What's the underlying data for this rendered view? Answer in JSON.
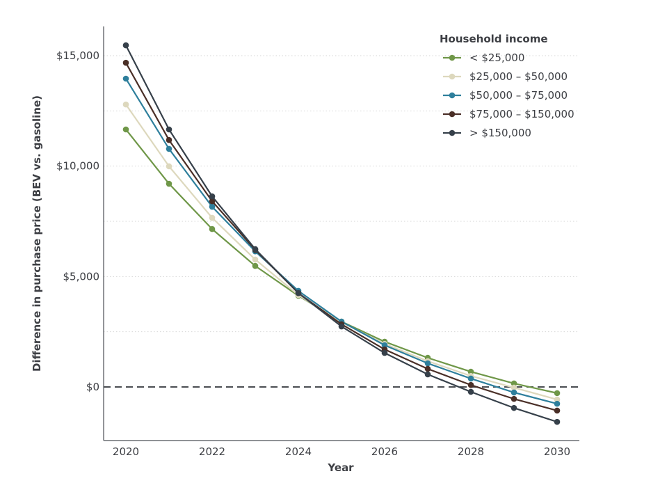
{
  "chart_data": {
    "type": "line",
    "title": "",
    "xlabel": "Year",
    "ylabel": "Difference in purchase price (BEV vs. gasoline)",
    "x": [
      2020,
      2021,
      2022,
      2023,
      2024,
      2025,
      2026,
      2027,
      2028,
      2029,
      2030
    ],
    "xlim": [
      2019.5,
      2030.5
    ],
    "ylim": [
      -2400,
      16200
    ],
    "x_ticks": [
      2020,
      2022,
      2024,
      2026,
      2028,
      2030
    ],
    "x_tick_labels": [
      "2020",
      "2022",
      "2024",
      "2026",
      "2028",
      "2030"
    ],
    "y_ticks": [
      0,
      5000,
      10000,
      15000
    ],
    "y_tick_labels": [
      "$0",
      "$5,000",
      "$10,000",
      "$15,000"
    ],
    "y_minor_gridlines": [
      2500,
      5000,
      7500,
      10000,
      12500,
      15000
    ],
    "reference_line": {
      "y": 0,
      "style": "dashed",
      "color": "#4a4d52"
    },
    "grid": "horizontal-dotted",
    "legend": {
      "title": "Household income",
      "position": "top-right"
    },
    "series": [
      {
        "name": "< $25,000",
        "color": "#6f9748",
        "values": [
          11660,
          9200,
          7150,
          5480,
          4130,
          2960,
          2050,
          1320,
          690,
          160,
          -280
        ]
      },
      {
        "name": "$25,000 – $50,000",
        "color": "#ddd8bd",
        "values": [
          12790,
          9990,
          7660,
          5770,
          4160,
          2930,
          1950,
          1170,
          500,
          -30,
          -570
        ]
      },
      {
        "name": "$50,000 – $75,000",
        "color": "#2e7f9c",
        "values": [
          13960,
          10780,
          8160,
          6140,
          4350,
          2960,
          1890,
          1070,
          380,
          -250,
          -760
        ]
      },
      {
        "name": "$75,000 – $150,000",
        "color": "#4a2f27",
        "values": [
          14680,
          11180,
          8410,
          6210,
          4250,
          2840,
          1700,
          820,
          90,
          -540,
          -1070
        ]
      },
      {
        "name": "> $150,000",
        "color": "#36404a",
        "values": [
          15470,
          11660,
          8630,
          6240,
          4250,
          2740,
          1540,
          570,
          -220,
          -950,
          -1580
        ]
      }
    ]
  }
}
